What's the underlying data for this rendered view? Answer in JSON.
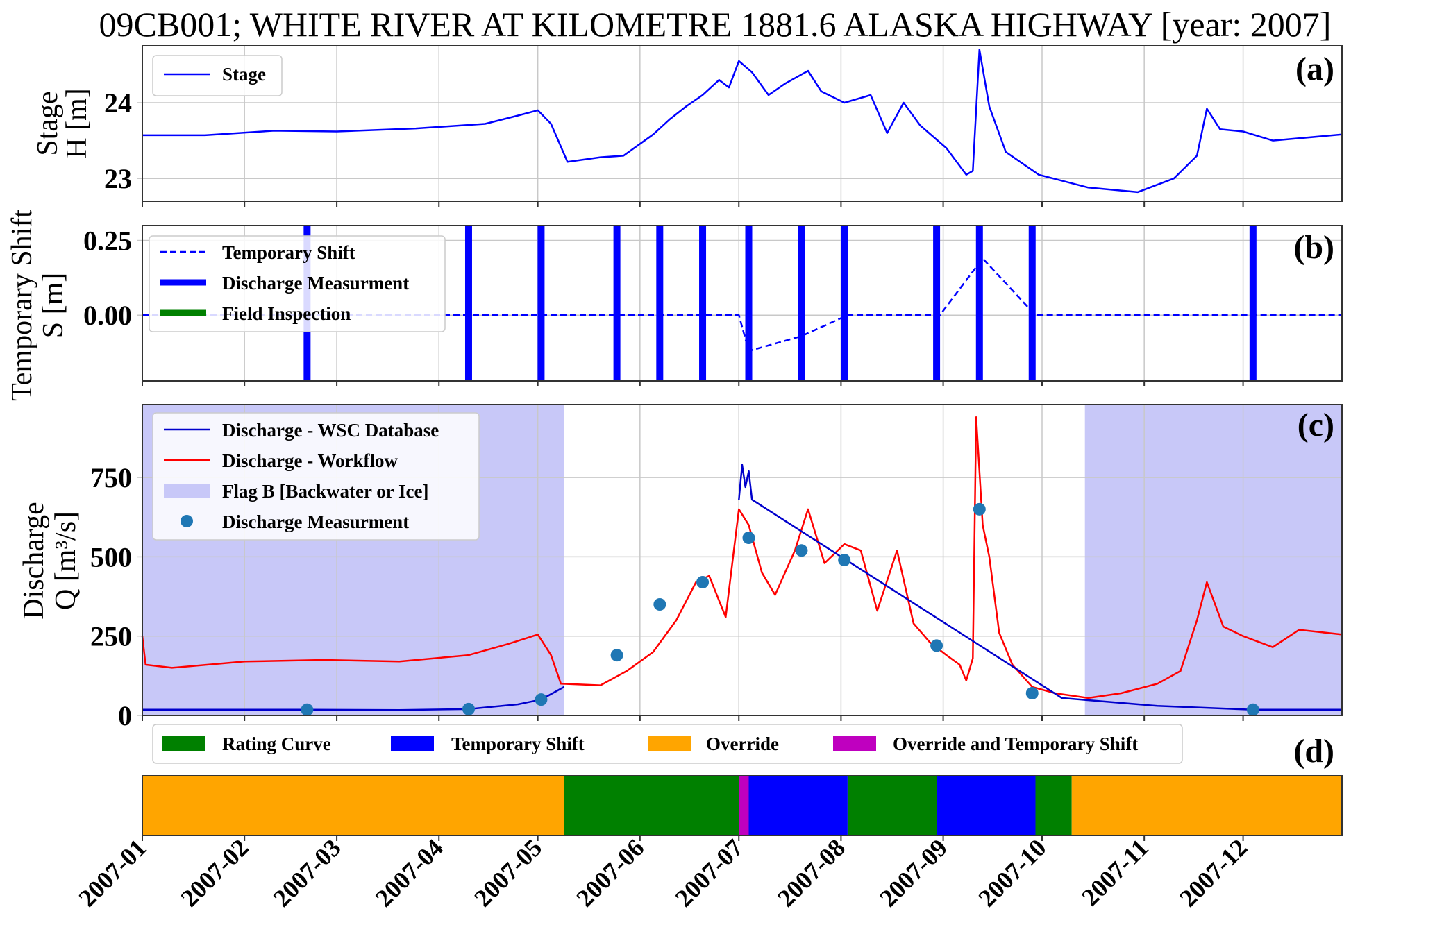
{
  "title": "09CB001; WHITE RIVER AT KILOMETRE 1881.6 ALASKA HIGHWAY [year: 2007]",
  "colors": {
    "stage": "#0000ff",
    "workflow": "#ff0000",
    "wsc": "#0000cc",
    "flag": "#c8c8f8",
    "measurement": "#1f77b4",
    "rating": "#008000",
    "shift": "#0000ff",
    "override": "#ffa500",
    "override_shift": "#bf00bf"
  },
  "x_ticks": [
    "2007-01",
    "2007-02",
    "2007-03",
    "2007-04",
    "2007-05",
    "2007-06",
    "2007-07",
    "2007-08",
    "2007-09",
    "2007-10",
    "2007-11",
    "2007-12"
  ],
  "x_range": [
    "2007-01-01",
    "2007-12-31"
  ],
  "chart_data": [
    {
      "panel": "a",
      "type": "line",
      "panel_label": "(a)",
      "ylabel": [
        "Stage",
        "H [m]"
      ],
      "yticks": [
        23,
        24
      ],
      "ylim": [
        22.7,
        24.75
      ],
      "legend": [
        "Stage"
      ],
      "grid": true,
      "series": [
        {
          "name": "Stage",
          "points": [
            [
              "2007-01-01",
              23.57
            ],
            [
              "2007-01-20",
              23.57
            ],
            [
              "2007-02-10",
              23.63
            ],
            [
              "2007-03-01",
              23.62
            ],
            [
              "2007-03-25",
              23.66
            ],
            [
              "2007-04-15",
              23.72
            ],
            [
              "2007-04-25",
              23.83
            ],
            [
              "2007-05-01",
              23.9
            ],
            [
              "2007-05-05",
              23.72
            ],
            [
              "2007-05-10",
              23.22
            ],
            [
              "2007-05-20",
              23.28
            ],
            [
              "2007-05-27",
              23.3
            ],
            [
              "2007-06-05",
              23.58
            ],
            [
              "2007-06-10",
              23.78
            ],
            [
              "2007-06-15",
              23.95
            ],
            [
              "2007-06-20",
              24.1
            ],
            [
              "2007-06-25",
              24.3
            ],
            [
              "2007-06-28",
              24.2
            ],
            [
              "2007-07-01",
              24.55
            ],
            [
              "2007-07-05",
              24.4
            ],
            [
              "2007-07-10",
              24.1
            ],
            [
              "2007-07-15",
              24.25
            ],
            [
              "2007-07-22",
              24.42
            ],
            [
              "2007-07-26",
              24.15
            ],
            [
              "2007-08-02",
              24.0
            ],
            [
              "2007-08-10",
              24.1
            ],
            [
              "2007-08-15",
              23.6
            ],
            [
              "2007-08-20",
              24.0
            ],
            [
              "2007-08-25",
              23.7
            ],
            [
              "2007-09-02",
              23.4
            ],
            [
              "2007-09-08",
              23.05
            ],
            [
              "2007-09-10",
              23.1
            ],
            [
              "2007-09-12",
              24.7
            ],
            [
              "2007-09-15",
              23.95
            ],
            [
              "2007-09-20",
              23.35
            ],
            [
              "2007-09-30",
              23.05
            ],
            [
              "2007-10-15",
              22.88
            ],
            [
              "2007-10-30",
              22.82
            ],
            [
              "2007-11-10",
              23.0
            ],
            [
              "2007-11-17",
              23.3
            ],
            [
              "2007-11-20",
              23.92
            ],
            [
              "2007-11-24",
              23.65
            ],
            [
              "2007-12-01",
              23.62
            ],
            [
              "2007-12-10",
              23.5
            ],
            [
              "2007-12-31",
              23.58
            ]
          ]
        }
      ]
    },
    {
      "panel": "b",
      "type": "line",
      "panel_label": "(b)",
      "ylabel": [
        "Temporary Shift",
        "S [m]"
      ],
      "ytick_labels": [
        "0.25",
        "0.00"
      ],
      "yticks": [
        0.25,
        0.0
      ],
      "ylim": [
        -0.22,
        0.3
      ],
      "legend": [
        "Temporary Shift",
        "Discharge Measurment",
        "Field Inspection"
      ],
      "grid": true,
      "series": [
        {
          "name": "Temporary Shift",
          "points": [
            [
              "2007-01-01",
              0
            ],
            [
              "2007-07-01",
              0
            ],
            [
              "2007-07-04",
              -0.12
            ],
            [
              "2007-07-20",
              -0.07
            ],
            [
              "2007-08-03",
              0
            ],
            [
              "2007-08-31",
              0
            ],
            [
              "2007-09-13",
              0.19
            ],
            [
              "2007-09-29",
              0
            ],
            [
              "2007-12-31",
              0
            ]
          ]
        }
      ],
      "discharge_measurement_dates": [
        "2007-02-20",
        "2007-04-10",
        "2007-05-02",
        "2007-05-25",
        "2007-06-07",
        "2007-06-20",
        "2007-07-04",
        "2007-07-20",
        "2007-08-02",
        "2007-08-30",
        "2007-09-12",
        "2007-09-28",
        "2007-12-04"
      ],
      "field_inspection_dates": []
    },
    {
      "panel": "c",
      "type": "line",
      "panel_label": "(c)",
      "ylabel": [
        "Discharge",
        "Q [m³/s]"
      ],
      "yticks": [
        0,
        250,
        500,
        750
      ],
      "ylim": [
        0,
        980
      ],
      "legend": [
        "Discharge - WSC Database",
        "Discharge - Workflow",
        "Flag B [Backwater or Ice]",
        "Discharge Measurment"
      ],
      "grid": true,
      "flag_b_ranges": [
        [
          "2007-01-01",
          "2007-05-09"
        ],
        [
          "2007-10-14",
          "2007-12-31"
        ]
      ],
      "series": [
        {
          "name": "Discharge - Workflow",
          "points": [
            [
              "2007-01-01",
              250
            ],
            [
              "2007-01-02",
              160
            ],
            [
              "2007-01-10",
              150
            ],
            [
              "2007-02-01",
              170
            ],
            [
              "2007-02-25",
              175
            ],
            [
              "2007-03-20",
              170
            ],
            [
              "2007-04-10",
              190
            ],
            [
              "2007-04-22",
              225
            ],
            [
              "2007-05-01",
              255
            ],
            [
              "2007-05-05",
              190
            ],
            [
              "2007-05-08",
              100
            ],
            [
              "2007-05-20",
              95
            ],
            [
              "2007-05-28",
              140
            ],
            [
              "2007-06-05",
              200
            ],
            [
              "2007-06-12",
              300
            ],
            [
              "2007-06-18",
              420
            ],
            [
              "2007-06-22",
              440
            ],
            [
              "2007-06-27",
              310
            ],
            [
              "2007-07-01",
              650
            ],
            [
              "2007-07-04",
              600
            ],
            [
              "2007-07-08",
              450
            ],
            [
              "2007-07-12",
              380
            ],
            [
              "2007-07-18",
              520
            ],
            [
              "2007-07-22",
              650
            ],
            [
              "2007-07-27",
              480
            ],
            [
              "2007-08-02",
              540
            ],
            [
              "2007-08-07",
              520
            ],
            [
              "2007-08-12",
              330
            ],
            [
              "2007-08-18",
              520
            ],
            [
              "2007-08-23",
              290
            ],
            [
              "2007-08-28",
              230
            ],
            [
              "2007-09-02",
              190
            ],
            [
              "2007-09-06",
              160
            ],
            [
              "2007-09-08",
              110
            ],
            [
              "2007-09-10",
              180
            ],
            [
              "2007-09-11",
              940
            ],
            [
              "2007-09-13",
              600
            ],
            [
              "2007-09-15",
              500
            ],
            [
              "2007-09-18",
              260
            ],
            [
              "2007-09-22",
              160
            ],
            [
              "2007-09-28",
              90
            ],
            [
              "2007-10-05",
              70
            ],
            [
              "2007-10-15",
              55
            ],
            [
              "2007-10-25",
              70
            ],
            [
              "2007-11-05",
              100
            ],
            [
              "2007-11-12",
              140
            ],
            [
              "2007-11-17",
              300
            ],
            [
              "2007-11-20",
              420
            ],
            [
              "2007-11-25",
              280
            ],
            [
              "2007-12-01",
              250
            ],
            [
              "2007-12-10",
              215
            ],
            [
              "2007-12-18",
              270
            ],
            [
              "2007-12-31",
              255
            ]
          ]
        },
        {
          "name": "Discharge - WSC Database",
          "points": [
            [
              "2007-01-01",
              18
            ],
            [
              "2007-02-20",
              18
            ],
            [
              "2007-03-20",
              17
            ],
            [
              "2007-04-10",
              20
            ],
            [
              "2007-04-25",
              35
            ],
            [
              "2007-05-02",
              50
            ],
            [
              "2007-05-09",
              90
            ],
            [
              "2007-07-01",
              null
            ],
            [
              "2007-07-01",
              680
            ],
            [
              "2007-07-02",
              790
            ],
            [
              "2007-07-03",
              720
            ],
            [
              "2007-07-04",
              770
            ],
            [
              "2007-07-05",
              680
            ],
            [
              "2007-10-07",
              55
            ],
            [
              "2007-11-05",
              30
            ],
            [
              "2007-12-04",
              18
            ],
            [
              "2007-12-31",
              18
            ]
          ]
        }
      ],
      "measurements": [
        [
          "2007-02-20",
          18
        ],
        [
          "2007-04-10",
          20
        ],
        [
          "2007-05-02",
          50
        ],
        [
          "2007-05-25",
          190
        ],
        [
          "2007-06-07",
          350
        ],
        [
          "2007-06-20",
          420
        ],
        [
          "2007-07-04",
          560
        ],
        [
          "2007-07-20",
          520
        ],
        [
          "2007-08-02",
          490
        ],
        [
          "2007-08-30",
          220
        ],
        [
          "2007-09-12",
          650
        ],
        [
          "2007-09-28",
          70
        ],
        [
          "2007-12-04",
          18
        ]
      ]
    },
    {
      "panel": "d",
      "type": "bar",
      "panel_label": "(d)",
      "legend": [
        "Rating Curve",
        "Temporary Shift",
        "Override",
        "Override and Temporary Shift"
      ],
      "segments": [
        {
          "category": "Override",
          "start": "2007-01-01",
          "end": "2007-05-09"
        },
        {
          "category": "Rating Curve",
          "start": "2007-05-09",
          "end": "2007-07-01"
        },
        {
          "category": "Override and Temporary Shift",
          "start": "2007-07-01",
          "end": "2007-07-04"
        },
        {
          "category": "Temporary Shift",
          "start": "2007-07-04",
          "end": "2007-08-03"
        },
        {
          "category": "Rating Curve",
          "start": "2007-08-03",
          "end": "2007-08-30"
        },
        {
          "category": "Temporary Shift",
          "start": "2007-08-30",
          "end": "2007-09-29"
        },
        {
          "category": "Rating Curve",
          "start": "2007-09-29",
          "end": "2007-10-10"
        },
        {
          "category": "Override",
          "start": "2007-10-10",
          "end": "2007-12-31"
        }
      ]
    }
  ]
}
